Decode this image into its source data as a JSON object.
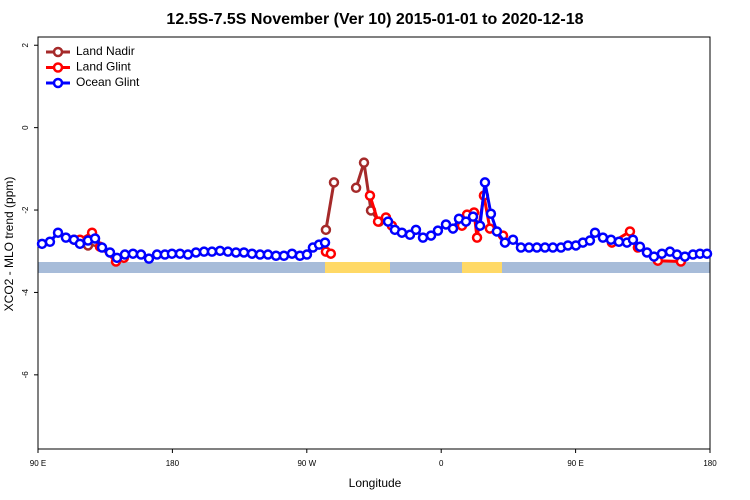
{
  "chart_data": {
    "type": "line",
    "title": "12.5S-7.5S November (Ver 10)   2015-01-01 to 2020-12-18",
    "x_label": "Longitude",
    "y_label": "XCO2 - MLO trend (ppm)",
    "xlim": [
      90,
      540
    ],
    "xticks": [
      {
        "value": 90,
        "label": "90 E"
      },
      {
        "value": 180,
        "label": "180"
      },
      {
        "value": 270,
        "label": "90 W"
      },
      {
        "value": 360,
        "label": "0"
      },
      {
        "value": 450,
        "label": "90 E"
      },
      {
        "value": 540,
        "label": "180"
      }
    ],
    "ylim": [
      -7.8,
      2.2
    ],
    "yticks": [
      2,
      0,
      -2,
      -4,
      -6
    ],
    "legend": "top-left",
    "series": [
      {
        "name": "Land Nadir",
        "color": "#a52a2a",
        "x": [
          123.5,
          128.2,
          null,
          282.8,
          288.2,
          null,
          303.0,
          308.3,
          313.0,
          318.4
        ],
        "values": [
          -2.86,
          -2.77,
          null,
          -2.48,
          -1.33,
          null,
          -1.46,
          -0.85,
          -2.01,
          -2.28
        ]
      },
      {
        "name": "Land Glint",
        "color": "#ff0000",
        "x": [
          114.1,
          118.1,
          126.2,
          131.5,
          142.2,
          147.5,
          null,
          282.8,
          286.1,
          null,
          312.3,
          317.7,
          323.0,
          327.0,
          null,
          373.9,
          377.3,
          382.0,
          384.0,
          388.6,
          392.6,
          401.4,
          null,
          474.3,
          486.4,
          491.7,
          505.1,
          520.5
        ],
        "values": [
          -2.72,
          -2.72,
          -2.55,
          -2.89,
          -3.25,
          -3.16,
          null,
          -3.01,
          -3.06,
          null,
          -1.65,
          -2.28,
          -2.18,
          -2.38,
          null,
          -2.38,
          -2.11,
          -2.06,
          -2.67,
          -1.65,
          -2.45,
          -2.62,
          null,
          -2.79,
          -2.52,
          -2.91,
          -3.23,
          -3.25
        ]
      },
      {
        "name": "Ocean Glint",
        "color": "#0000ff",
        "x": [
          92.7,
          98.0,
          103.4,
          108.7,
          114.1,
          118.1,
          123.5,
          128.2,
          132.9,
          138.2,
          142.9,
          148.2,
          153.6,
          159.0,
          164.3,
          169.7,
          175.0,
          179.7,
          185.1,
          190.4,
          195.8,
          201.2,
          206.5,
          211.9,
          217.2,
          222.6,
          227.9,
          233.3,
          238.7,
          244.0,
          249.4,
          254.7,
          260.1,
          265.4,
          270.1,
          274.1,
          278.2,
          282.2,
          null,
          324.4,
          329.0,
          333.7,
          339.1,
          343.1,
          347.8,
          353.2,
          357.8,
          363.2,
          367.9,
          371.9,
          376.6,
          381.3,
          386.0,
          389.3,
          393.3,
          397.3,
          402.7,
          408.1,
          413.4,
          418.8,
          424.1,
          429.5,
          434.8,
          440.2,
          444.9,
          450.2,
          454.9,
          459.6,
          463.0,
          468.3,
          473.7,
          479.0,
          484.4,
          488.4,
          493.1,
          497.8,
          502.5,
          507.8,
          513.2,
          517.9,
          523.2,
          528.6,
          533.3,
          538.0
        ],
        "values": [
          -2.82,
          -2.77,
          -2.55,
          -2.67,
          -2.72,
          -2.82,
          -2.74,
          -2.69,
          -2.91,
          -3.03,
          -3.16,
          -3.08,
          -3.06,
          -3.08,
          -3.18,
          -3.08,
          -3.08,
          -3.06,
          -3.06,
          -3.08,
          -3.03,
          -3.01,
          -3.01,
          -2.99,
          -3.01,
          -3.03,
          -3.03,
          -3.06,
          -3.08,
          -3.08,
          -3.11,
          -3.11,
          -3.06,
          -3.11,
          -3.08,
          -2.91,
          -2.84,
          -2.79,
          null,
          -2.28,
          -2.48,
          -2.55,
          -2.6,
          -2.48,
          -2.67,
          -2.62,
          -2.5,
          -2.35,
          -2.45,
          -2.21,
          -2.28,
          -2.16,
          -2.38,
          -1.33,
          -2.09,
          -2.52,
          -2.79,
          -2.72,
          -2.91,
          -2.91,
          -2.91,
          -2.91,
          -2.91,
          -2.91,
          -2.86,
          -2.86,
          -2.79,
          -2.74,
          -2.55,
          -2.67,
          -2.72,
          -2.77,
          -2.79,
          -2.72,
          -2.89,
          -3.03,
          -3.13,
          -3.06,
          -3.01,
          -3.08,
          -3.13,
          -3.08,
          -3.06,
          -3.06
        ]
      }
    ]
  }
}
